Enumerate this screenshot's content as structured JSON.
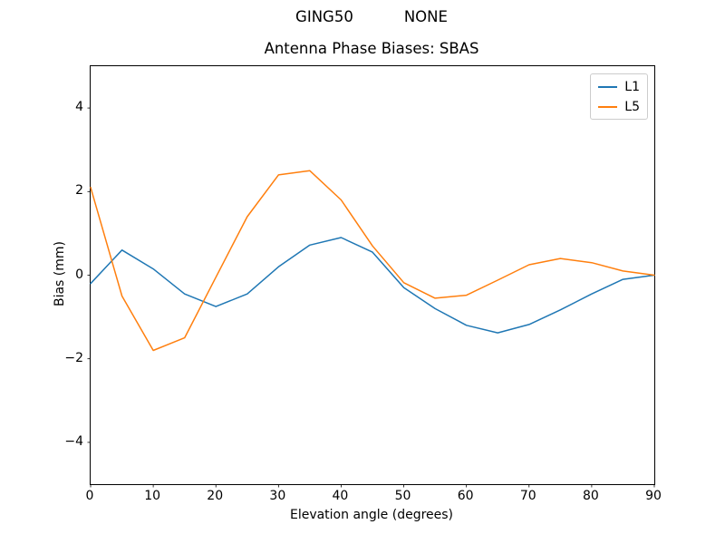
{
  "figure": {
    "suptitle_left": "GING50",
    "suptitle_right": "NONE"
  },
  "chart_data": {
    "type": "line",
    "title": "Antenna Phase Biases: SBAS",
    "xlabel": "Elevation angle (degrees)",
    "ylabel": "Bias (mm)",
    "xlim": [
      0,
      90
    ],
    "ylim": [
      -5,
      5
    ],
    "x_ticks": [
      0,
      10,
      20,
      30,
      40,
      50,
      60,
      70,
      80,
      90
    ],
    "y_ticks": [
      -4,
      -2,
      0,
      2,
      4
    ],
    "grid": false,
    "legend_position": "upper right",
    "x": [
      0,
      5,
      10,
      15,
      20,
      25,
      30,
      35,
      40,
      45,
      50,
      55,
      60,
      65,
      70,
      75,
      80,
      85,
      90
    ],
    "series": [
      {
        "name": "L1",
        "color": "#1f77b4",
        "values": [
          -0.2,
          0.6,
          0.15,
          -0.45,
          -0.75,
          -0.45,
          0.2,
          0.72,
          0.9,
          0.55,
          -0.3,
          -0.8,
          -1.2,
          -1.38,
          -1.18,
          -0.83,
          -0.45,
          -0.1,
          0.0
        ]
      },
      {
        "name": "L5",
        "color": "#ff7f0e",
        "values": [
          2.1,
          -0.5,
          -1.8,
          -1.5,
          -0.05,
          1.4,
          2.4,
          2.5,
          1.8,
          0.7,
          -0.18,
          -0.55,
          -0.48,
          -0.12,
          0.25,
          0.4,
          0.3,
          0.1,
          0.0
        ]
      }
    ]
  }
}
